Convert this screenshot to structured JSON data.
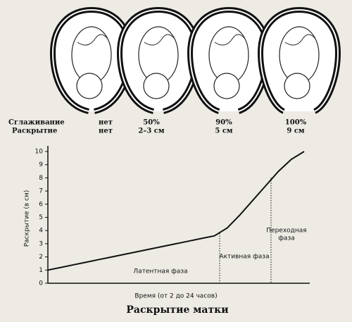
{
  "chart_data": {
    "type": "line",
    "title": "Раскрытие матки",
    "x_label": "Время (от 2 до 24 часов)",
    "y_label": "Раскрытие (в см)",
    "categories": [
      null,
      null,
      null,
      null,
      null,
      null,
      null,
      null,
      null,
      null,
      null,
      null,
      null,
      null,
      null,
      null,
      null,
      null,
      null,
      null,
      null
    ],
    "values": [
      1.0,
      1.2,
      1.4,
      1.6,
      1.8,
      2.0,
      2.2,
      2.4,
      2.6,
      2.8,
      3.0,
      3.2,
      3.4,
      3.6,
      4.2,
      5.2,
      6.3,
      7.4,
      8.5,
      9.4,
      10.0
    ],
    "color": "#111111",
    "ylim": [
      0,
      10
    ],
    "yticks": [
      0,
      1,
      2,
      3,
      4,
      5,
      6,
      7,
      8,
      9,
      10
    ],
    "grid": false,
    "annotations": [
      {
        "lines": [
          "Латентная фаза"
        ]
      },
      {
        "lines": [
          "Активная фаза"
        ]
      },
      {
        "lines": [
          "Переходная",
          "фаза"
        ]
      }
    ]
  },
  "stages": {
    "row_labels": [
      "Сглаживание",
      "Раскрытие"
    ],
    "columns": [
      [
        "нет",
        "нет"
      ],
      [
        "50%",
        "2–3 см"
      ],
      [
        "90%",
        "5 см"
      ],
      [
        "100%",
        "9 см"
      ]
    ]
  }
}
